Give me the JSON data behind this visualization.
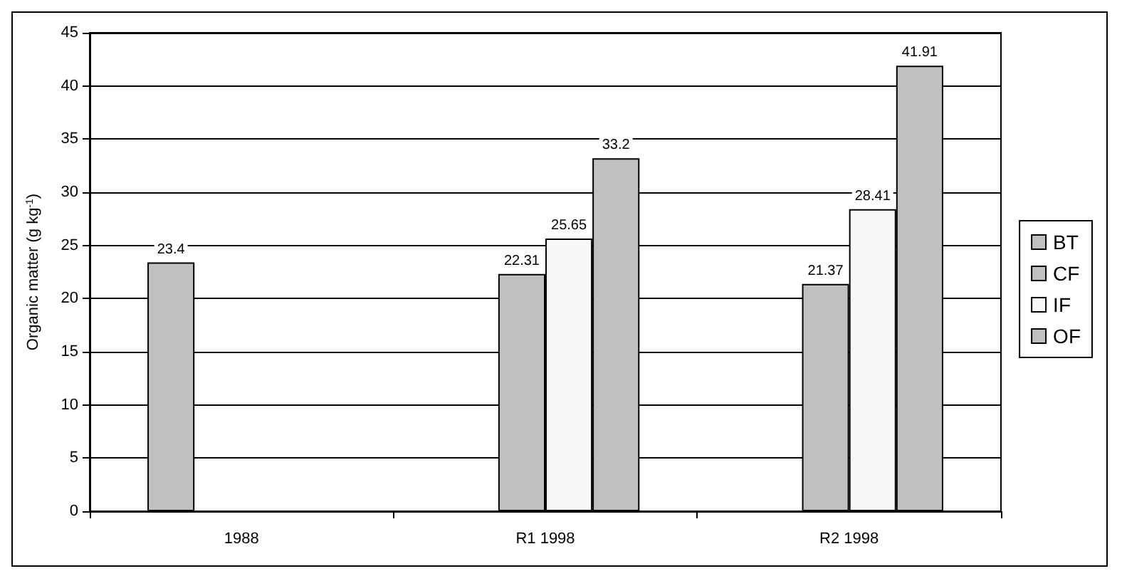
{
  "chart_data": {
    "type": "bar",
    "ylabel": "Organic matter (g kg$^{-1}$)",
    "categories": [
      "1988",
      "R1 1998",
      "R2 1998"
    ],
    "series": [
      {
        "name": "BT",
        "color": "#c0c0c0",
        "values": [
          23.4,
          null,
          null
        ]
      },
      {
        "name": "CF",
        "color": "#c0c0c0",
        "values": [
          null,
          22.31,
          21.37
        ]
      },
      {
        "name": "IF",
        "color": "#f8f8f8",
        "values": [
          null,
          25.65,
          28.41
        ]
      },
      {
        "name": "OF",
        "color": "#c0c0c0",
        "values": [
          null,
          33.2,
          41.91
        ]
      }
    ],
    "ylim": [
      0,
      45
    ],
    "yticks": [
      0,
      5,
      10,
      15,
      20,
      25,
      30,
      35,
      40,
      45
    ],
    "grid": "y",
    "legend": "right",
    "data_labels": true
  }
}
